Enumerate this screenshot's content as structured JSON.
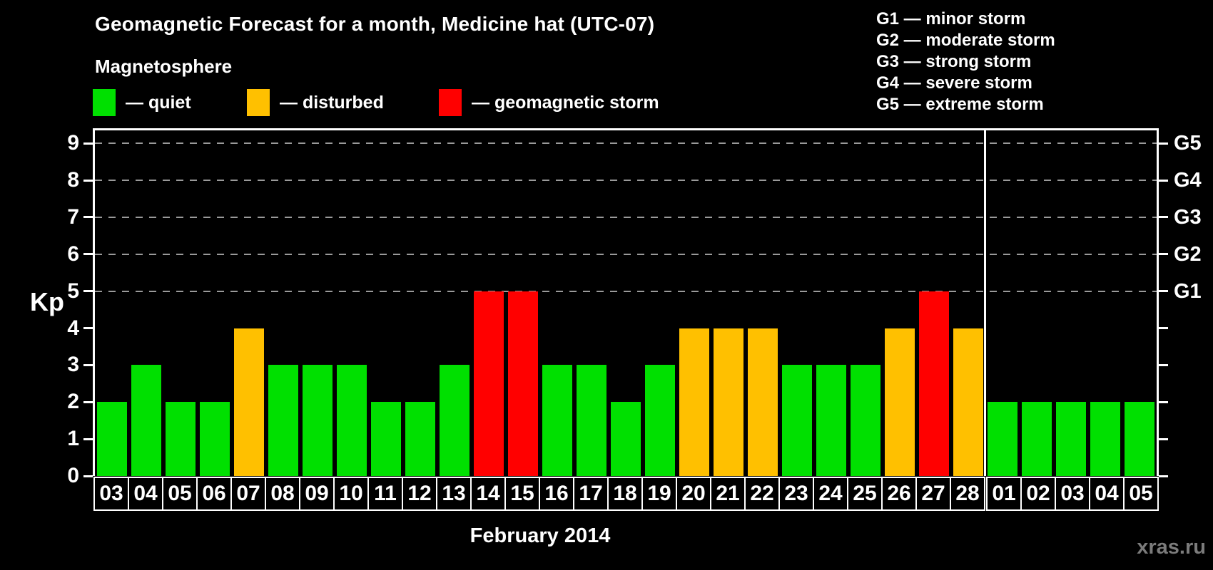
{
  "header": {
    "title": "Geomagnetic Forecast for a month, Medicine hat (UTC-07)",
    "subtitle": "Magnetosphere"
  },
  "legend": {
    "quiet": {
      "label": "— quiet",
      "color": "#00e000"
    },
    "disturbed": {
      "label": "— disturbed",
      "color": "#ffc000"
    },
    "storm": {
      "label": "— geomagnetic storm",
      "color": "#ff0000"
    }
  },
  "storm_scale_legend": {
    "items": [
      {
        "label": "G1 — minor storm"
      },
      {
        "label": "G2 — moderate storm"
      },
      {
        "label": "G3 — strong storm"
      },
      {
        "label": "G4 — severe storm"
      },
      {
        "label": "G5 — extreme storm"
      }
    ]
  },
  "watermark": "xras.ru",
  "chart_data": {
    "type": "bar",
    "title": "Geomagnetic Forecast for a month, Medicine hat (UTC-07)",
    "xlabel": "February 2014",
    "ylabel": "Kp",
    "ylim": [
      0,
      9.35
    ],
    "grid": "dashed horizontal lines at Kp 5-9 only",
    "yticks": [
      0,
      1,
      2,
      3,
      4,
      5,
      6,
      7,
      8,
      9
    ],
    "grid_levels": [
      5,
      6,
      7,
      8,
      9
    ],
    "right_axis_labels": [
      {
        "level": 5,
        "text": "G1"
      },
      {
        "level": 6,
        "text": "G2"
      },
      {
        "level": 7,
        "text": "G3"
      },
      {
        "level": 8,
        "text": "G4"
      },
      {
        "level": 9,
        "text": "G5"
      }
    ],
    "categories": [
      "03",
      "04",
      "05",
      "06",
      "07",
      "08",
      "09",
      "10",
      "11",
      "12",
      "13",
      "14",
      "15",
      "16",
      "17",
      "18",
      "19",
      "20",
      "21",
      "22",
      "23",
      "24",
      "25",
      "26",
      "27",
      "28",
      "01",
      "02",
      "03",
      "04",
      "05"
    ],
    "values": [
      2,
      3,
      2,
      2,
      4,
      3,
      3,
      3,
      2,
      2,
      3,
      5,
      5,
      3,
      3,
      2,
      3,
      4,
      4,
      4,
      3,
      3,
      3,
      4,
      5,
      4,
      2,
      2,
      2,
      2,
      2
    ],
    "color_rule": {
      "quiet_max": 3,
      "storm_min": 5
    },
    "month_separator_index": 26,
    "legend_position": "top-left",
    "axis_color": "#ffffff",
    "gridline_color": "#9a9a9a",
    "background_color": "#000000"
  }
}
